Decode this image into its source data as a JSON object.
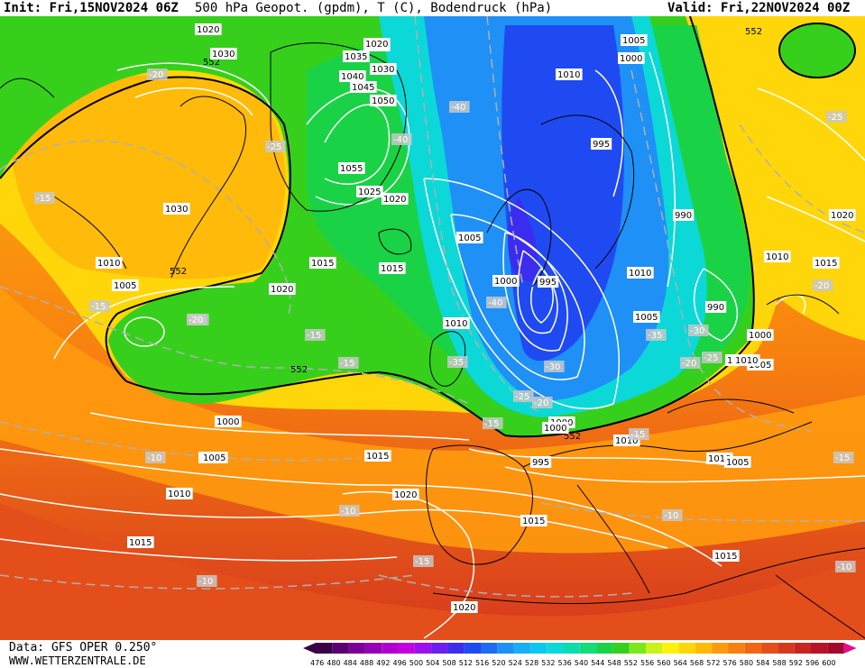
{
  "header": {
    "init": "Init: Fri,15NOV2024 06Z",
    "title": "500 hPa Geopot. (gpdm), T (C), Bodendruck (hPa)",
    "valid": "Valid: Fri,22NOV2024 00Z"
  },
  "footer": {
    "data_source": "Data: GFS OPER 0.250°",
    "website": "WWW.WETTERZENTRALE.DE"
  },
  "legend": {
    "values": [
      "476",
      "480",
      "484",
      "488",
      "492",
      "496",
      "500",
      "504",
      "508",
      "512",
      "516",
      "520",
      "524",
      "528",
      "532",
      "536",
      "540",
      "544",
      "548",
      "552",
      "556",
      "560",
      "564",
      "568",
      "572",
      "576",
      "580",
      "584",
      "588",
      "592",
      "596",
      "600"
    ],
    "colors": [
      "#3a0046",
      "#5a0070",
      "#7a0096",
      "#9400b4",
      "#b000cf",
      "#c400e0",
      "#9a10ef",
      "#6d1ef0",
      "#3b2cf0",
      "#1f4af2",
      "#1e6cf4",
      "#1e90f6",
      "#1aaef6",
      "#10c6f0",
      "#0cd8d8",
      "#0cdcab",
      "#14dc7a",
      "#1ad246",
      "#36d01c",
      "#7ae81a",
      "#c8f21a",
      "#fff20a",
      "#ffd60a",
      "#ffba0a",
      "#ff9a0e",
      "#f88010",
      "#f06614",
      "#e44e1a",
      "#d6381e",
      "#c82422",
      "#b81226",
      "#a2082a"
    ]
  },
  "map": {
    "contour_552_label": "552",
    "pressure_labels": [
      "1020",
      "1025",
      "1030",
      "1035",
      "1040",
      "1045",
      "1050",
      "1055",
      "1030",
      "1020",
      "1025",
      "1020",
      "1015",
      "1010",
      "1005",
      "1000",
      "995",
      "990",
      "1005",
      "1000",
      "1010",
      "1015",
      "1020",
      "1030",
      "1010",
      "1005",
      "1000",
      "995",
      "990",
      "1010",
      "1005",
      "1000",
      "995",
      "1000",
      "1005",
      "1010",
      "1015",
      "1020",
      "1010",
      "1005",
      "1015",
      "1020",
      "1015",
      "1010",
      "1000",
      "1005",
      "1010",
      "1015",
      "1010",
      "1005",
      "1000",
      "1005",
      "1010",
      "1015",
      "1020"
    ],
    "temperature_labels": [
      "-20",
      "-25",
      "-15",
      "-20",
      "-15",
      "-20",
      "-15",
      "-10",
      "-15",
      "-10",
      "-15",
      "-10",
      "-15",
      "-40",
      "-40",
      "-35",
      "-40",
      "-30",
      "-25",
      "-20",
      "-35",
      "-30",
      "-25",
      "-20",
      "-25",
      "-20",
      "-15",
      "-10",
      "-15",
      "-10"
    ]
  }
}
